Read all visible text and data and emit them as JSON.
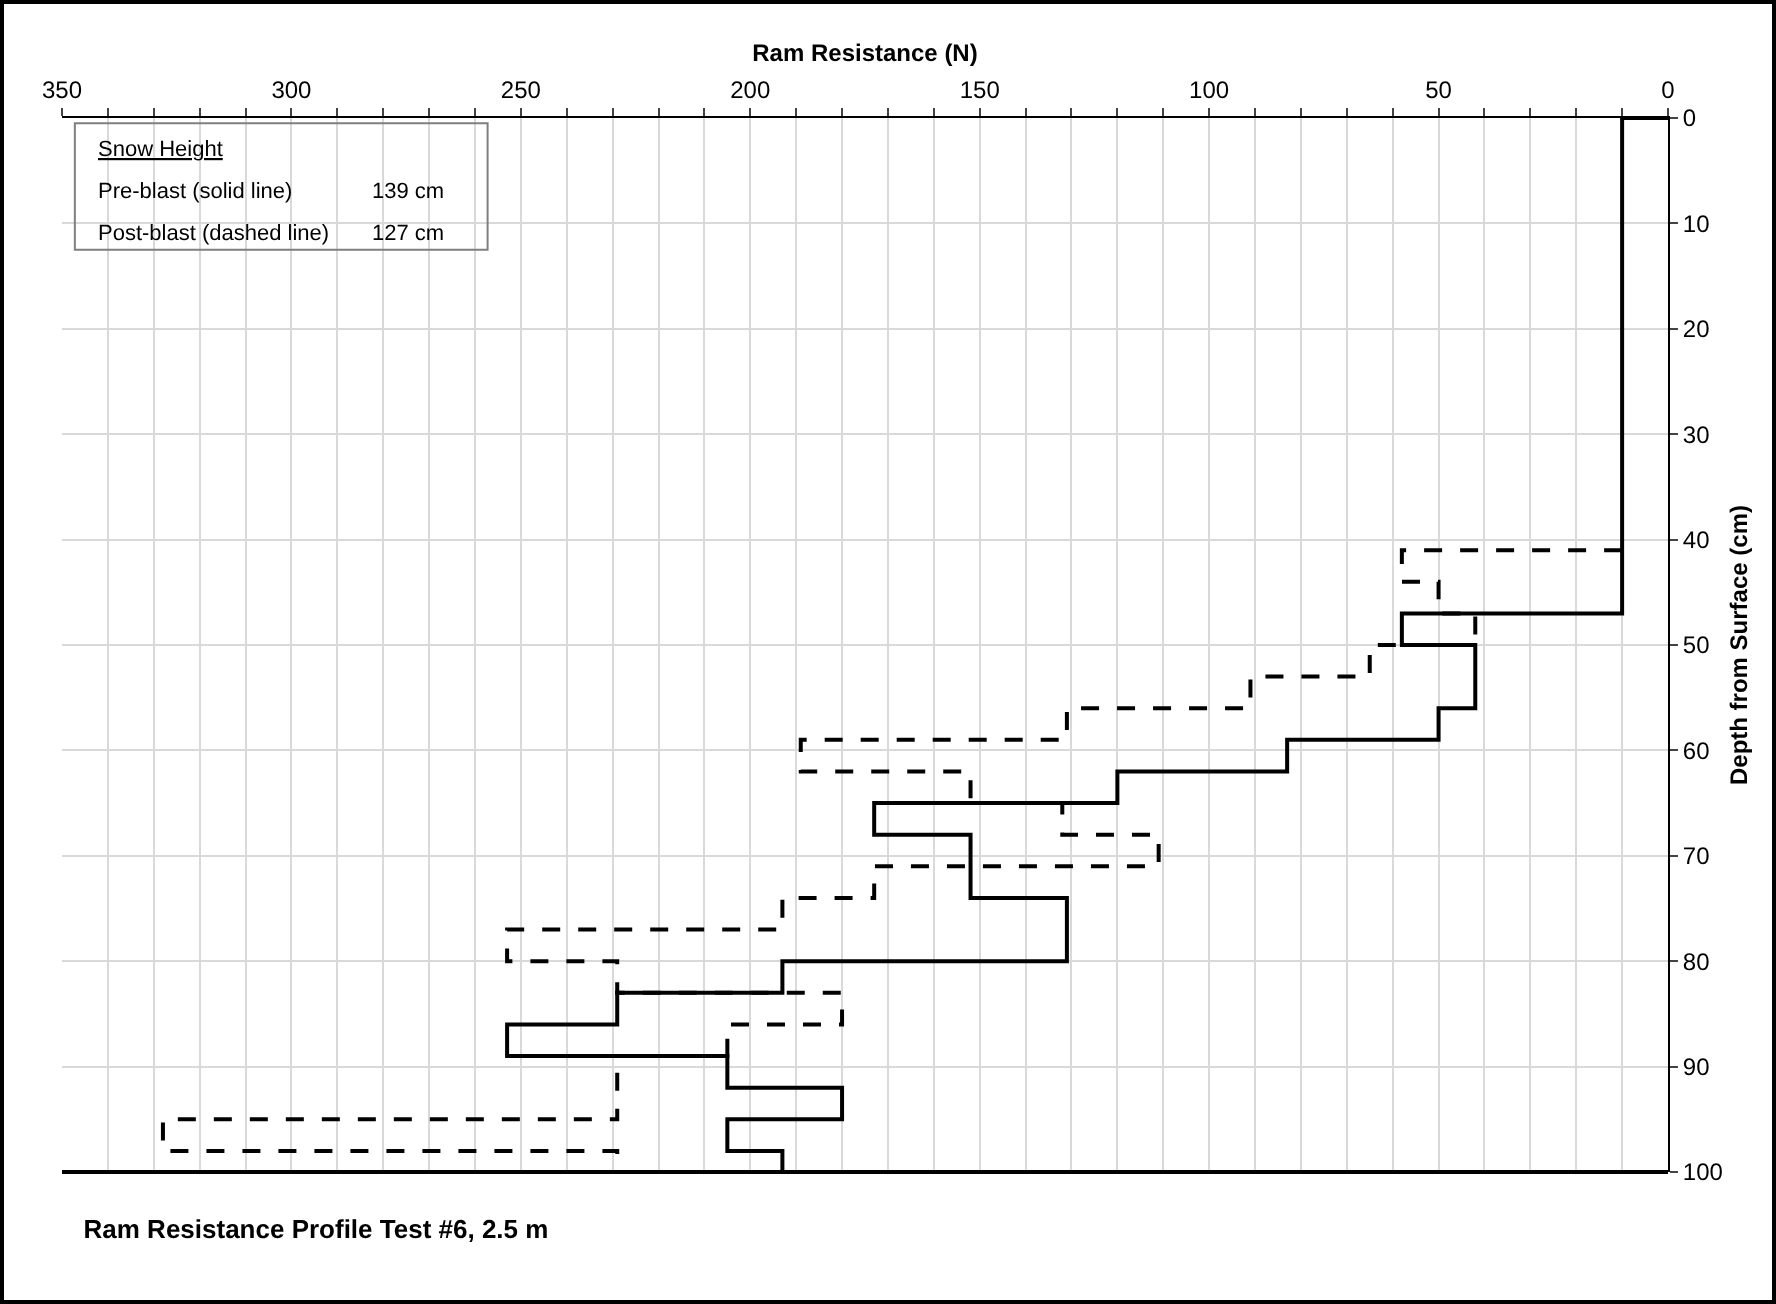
{
  "chart_data": {
    "type": "line",
    "title": "Ram Resistance Profile Test #6, 2.5 m",
    "xlabel": "Ram Resistance (N)",
    "ylabel": "Depth from Surface (cm)",
    "annotations": [
      "Snow Height",
      "Pre-blast (solid line)",
      "139 cm",
      "Post-blast (dashed line)",
      "127 cm"
    ],
    "xlim": [
      350,
      0
    ],
    "xticks": [
      350,
      {
        "value": 340,
        "label": null
      },
      {
        "value": 330,
        "label": null
      },
      {
        "value": 320,
        "label": null
      },
      {
        "value": 310,
        "label": null
      },
      300,
      {
        "value": 290,
        "label": null
      },
      {
        "value": 280,
        "label": null
      },
      {
        "value": 270,
        "label": null
      },
      {
        "value": 260,
        "label": null
      },
      250,
      {
        "value": 240,
        "label": null
      },
      {
        "value": 230,
        "label": null
      },
      {
        "value": 220,
        "label": null
      },
      {
        "value": 210,
        "label": null
      },
      200,
      {
        "value": 190,
        "label": null
      },
      {
        "value": 180,
        "label": null
      },
      {
        "value": 170,
        "label": null
      },
      {
        "value": 160,
        "label": null
      },
      150,
      {
        "value": 140,
        "label": null
      },
      {
        "value": 130,
        "label": null
      },
      {
        "value": 120,
        "label": null
      },
      {
        "value": 110,
        "label": null
      },
      100,
      {
        "value": 90,
        "label": null
      },
      {
        "value": 80,
        "label": null
      },
      {
        "value": 70,
        "label": null
      },
      {
        "value": 60,
        "label": null
      },
      50,
      {
        "value": 40,
        "label": null
      },
      {
        "value": 30,
        "label": null
      },
      {
        "value": 20,
        "label": null
      },
      {
        "value": 10,
        "label": null
      },
      0
    ],
    "ylim": [
      100,
      0
    ],
    "yticks": [
      0,
      10,
      20,
      30,
      40,
      50,
      60,
      70,
      80,
      90,
      100
    ],
    "grid": true,
    "marker": "none",
    "series": [
      {
        "color": "#000000",
        "line_style": "solid",
        "x": [
          0,
          10,
          10,
          58,
          58,
          42,
          42,
          50,
          50,
          83,
          83,
          120,
          120,
          173,
          173,
          152,
          152,
          131,
          131,
          193,
          193,
          229,
          229,
          253,
          253,
          205,
          205,
          180,
          180,
          205,
          205,
          193,
          193,
          0
        ],
        "values": [
          0,
          0,
          47,
          47,
          50,
          50,
          56,
          56,
          59,
          59,
          62,
          62,
          65,
          65,
          68,
          68,
          74,
          74,
          80,
          80,
          83,
          83,
          86,
          86,
          89,
          89,
          92,
          92,
          95,
          95,
          98,
          98,
          100,
          100
        ]
      },
      {
        "color": "#000000",
        "line_style": "dashed",
        "x": [
          10,
          58,
          58,
          50,
          50,
          42,
          42,
          65,
          65,
          91,
          91,
          131,
          131,
          189,
          189,
          152,
          152,
          132,
          132,
          111,
          111,
          173,
          173,
          193,
          193,
          253,
          253,
          229,
          229,
          180,
          180,
          205,
          205,
          229,
          229,
          328,
          328,
          229,
          229,
          193
        ],
        "values": [
          41,
          41,
          44,
          44,
          47,
          47,
          50,
          50,
          53,
          53,
          56,
          56,
          59,
          59,
          62,
          62,
          65,
          65,
          68,
          68,
          71,
          71,
          74,
          74,
          77,
          77,
          80,
          80,
          83,
          83,
          86,
          86,
          89,
          89,
          95,
          95,
          98,
          98,
          100,
          100
        ]
      }
    ]
  }
}
